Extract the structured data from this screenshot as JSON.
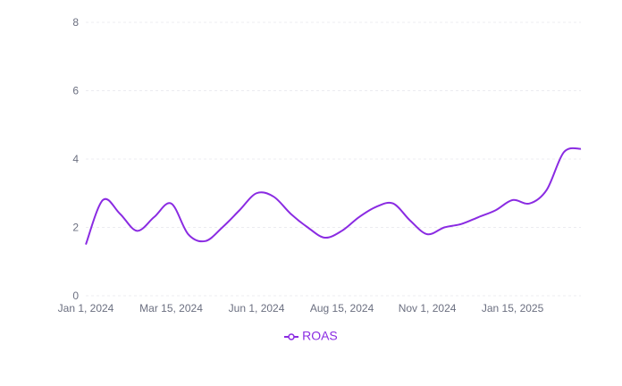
{
  "chart_data": {
    "type": "line",
    "title": "",
    "xlabel": "",
    "ylabel": "",
    "ylim": [
      0,
      8
    ],
    "yticks": [
      "0",
      "2",
      "4",
      "6",
      "8"
    ],
    "xticks": [
      {
        "date": "2024-01-01",
        "label": "Jan 1, 2024"
      },
      {
        "date": "2024-03-15",
        "label": "Mar 15, 2024"
      },
      {
        "date": "2024-06-01",
        "label": "Jun 1, 2024"
      },
      {
        "date": "2024-08-15",
        "label": "Aug 15, 2024"
      },
      {
        "date": "2024-11-01",
        "label": "Nov 1, 2024"
      },
      {
        "date": "2025-01-15",
        "label": "Jan 15, 2025"
      }
    ],
    "grid": "horizontal dashed",
    "legend": "bottom",
    "x": [
      "2024-01-01",
      "2024-01-15",
      "2024-02-01",
      "2024-02-15",
      "2024-03-01",
      "2024-03-15",
      "2024-04-01",
      "2024-04-15",
      "2024-05-01",
      "2024-05-15",
      "2024-06-01",
      "2024-06-15",
      "2024-07-01",
      "2024-07-15",
      "2024-08-01",
      "2024-08-15",
      "2024-09-01",
      "2024-09-15",
      "2024-10-01",
      "2024-10-15",
      "2024-11-01",
      "2024-11-15",
      "2024-12-01",
      "2024-12-15",
      "2025-01-01",
      "2025-01-15",
      "2025-02-01",
      "2025-02-15",
      "2025-03-01",
      "2025-03-15"
    ],
    "series": [
      {
        "name": "ROAS",
        "color": "#8a2be2",
        "values": [
          1.5,
          2.8,
          2.4,
          1.9,
          2.3,
          2.7,
          1.8,
          1.6,
          2.0,
          2.5,
          3.0,
          2.9,
          2.4,
          2.0,
          1.7,
          1.9,
          2.3,
          2.6,
          2.7,
          2.2,
          1.8,
          2.0,
          2.1,
          2.3,
          2.5,
          2.8,
          2.7,
          3.1,
          4.2,
          4.3
        ]
      }
    ]
  }
}
